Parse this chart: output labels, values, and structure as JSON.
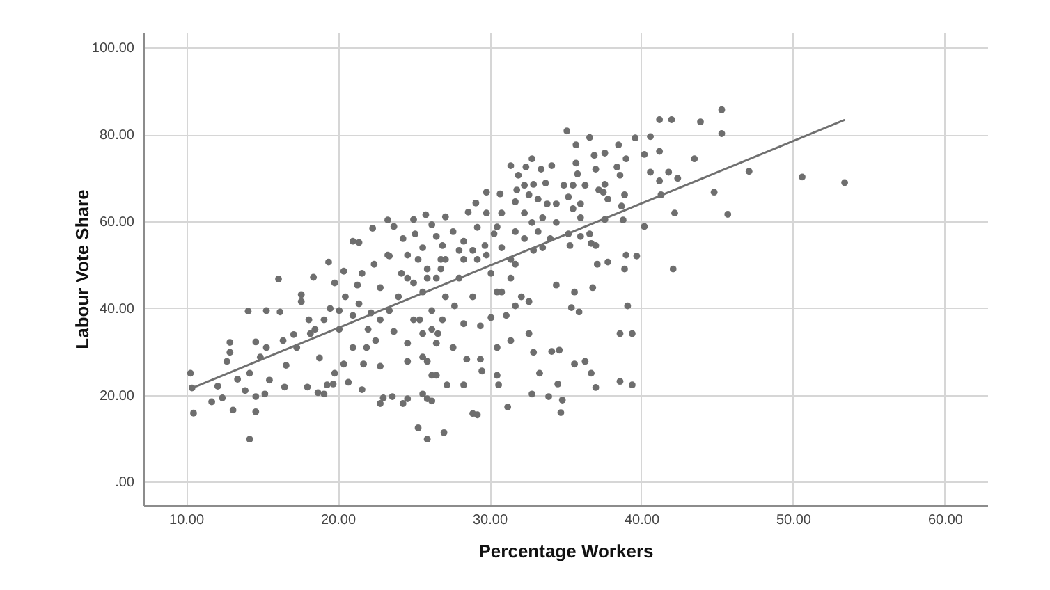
{
  "chart_data": {
    "type": "scatter",
    "xlabel": "Percentage Workers",
    "ylabel": "Labour Vote Share",
    "xlim": [
      7.2,
      62.8
    ],
    "ylim": [
      -5.4,
      103.6
    ],
    "xticks": [
      {
        "value": 10,
        "label": "10.00"
      },
      {
        "value": 20,
        "label": "20.00"
      },
      {
        "value": 30,
        "label": "30.00"
      },
      {
        "value": 40,
        "label": "40.00"
      },
      {
        "value": 50,
        "label": "50.00"
      },
      {
        "value": 60,
        "label": "60.00"
      }
    ],
    "yticks": [
      {
        "value": 0,
        "label": ".00"
      },
      {
        "value": 20,
        "label": "20.00"
      },
      {
        "value": 40,
        "label": "40.00"
      },
      {
        "value": 60,
        "label": "60.00"
      },
      {
        "value": 80,
        "label": "80.00"
      },
      {
        "value": 100,
        "label": "100.00"
      }
    ],
    "grid": true,
    "series": [
      {
        "color": "#6e6e6e",
        "marker": "circle",
        "x": [
          10.3,
          10.5,
          10.4,
          11.7,
          12.1,
          12.4,
          12.9,
          12.9,
          12.7,
          13.1,
          13.4,
          13.9,
          14.1,
          14.2,
          14.2,
          14.6,
          14.6,
          14.6,
          14.9,
          15.3,
          15.2,
          15.3,
          15.5,
          16.1,
          16.2,
          16.5,
          16.6,
          16.4,
          17.1,
          17.3,
          17.6,
          18.0,
          18.4,
          18.1,
          18.5,
          18.8,
          18.7,
          19.1,
          19.3,
          19.4,
          19.8,
          19.7,
          19.5,
          20.4,
          20.1,
          20.4,
          20.7,
          21.0,
          21.3,
          21.4,
          21.6,
          21.7,
          22.2,
          22.5,
          22.8,
          23.0,
          22.4,
          22.8,
          23.6,
          23.3,
          24.0,
          24.3,
          24.6,
          24.6,
          25.3,
          25.9,
          25.6,
          25.9,
          25.0,
          26.2,
          24.6,
          25.9,
          27.0,
          28.9,
          29.2,
          31.2,
          32.8,
          33.9,
          34.7,
          34.8,
          34.5,
          33.3,
          32.9,
          34.1,
          34.6,
          35.6,
          36.3,
          36.7,
          37.0,
          38.6,
          39.4,
          38.6,
          39.4,
          39.1,
          35.4,
          35.9,
          36.8,
          35.6,
          34.4,
          37.1,
          37.8,
          38.9,
          39.7,
          42.1,
          32.6,
          31.4,
          30.5,
          30.5,
          30.6,
          29.4,
          29.5,
          28.3,
          27.2,
          26.2,
          26.5,
          27.6,
          28.3,
          29.4,
          30.1,
          31.1,
          31.7,
          32.6,
          25.6,
          26.6,
          25.9,
          27.7,
          30.5,
          28.5,
          35.1,
          41.2,
          42.0,
          43.9,
          45.3,
          45.3,
          36.6,
          35.7,
          38.5,
          39.6,
          40.6,
          40.2,
          41.2,
          43.5,
          36.9,
          37.6,
          37.0,
          35.7,
          39.0,
          38.4,
          38.6,
          40.6,
          41.2,
          41.8,
          42.4,
          41.3,
          44.8,
          42.2,
          40.2,
          38.9,
          38.7,
          37.6,
          37.5,
          37.8,
          37.6,
          38.8,
          39.0,
          31.4,
          31.9,
          32.8,
          32.4,
          33.4,
          34.1,
          32.9,
          32.3,
          33.7,
          35.8,
          36.3,
          34.9,
          35.5,
          35.2,
          34.4,
          35.5,
          36.0,
          37.2,
          33.2,
          32.6,
          31.8,
          31.7,
          30.7,
          29.8,
          29.1,
          28.6,
          30.8,
          29.8,
          27.1,
          25.8,
          26.2,
          27.6,
          28.3,
          28.0,
          29.2,
          30.3,
          31.7,
          32.8,
          33.5,
          34.0,
          33.5,
          35.2,
          36.0,
          36.6,
          36.7,
          37.0,
          35.3,
          32.9,
          32.3,
          30.8,
          29.7,
          26.9,
          25.6,
          21.0,
          21.4,
          22.3,
          23.3,
          23.7,
          25.0,
          25.1,
          24.3,
          23.4,
          24.6,
          47.1,
          45.7,
          50.6,
          53.4,
          24.2,
          25.0,
          25.6,
          26.5,
          26.8,
          25.3,
          23.4,
          22.8,
          22.0,
          23.7,
          24.6,
          25.6,
          26.5,
          26.2,
          20.5,
          19.8,
          21.0,
          19.1,
          18.2,
          17.6,
          21.6,
          22.8,
          20.1,
          21.9,
          26.8,
          28.0,
          29.2,
          30.1,
          30.8,
          28.9,
          27.1,
          25.9,
          26.2,
          31.7,
          32.1,
          31.4,
          25.4,
          26.9,
          26.5,
          28.3,
          29.8,
          31.4,
          28.9,
          30.5,
          32.3,
          33.8,
          34.4,
          36.0,
          33.2,
          27.1
        ],
        "values": [
          25.0,
          15.8,
          21.6,
          18.4,
          22.0,
          19.3,
          32.1,
          29.8,
          27.7,
          16.5,
          23.6,
          21.0,
          39.3,
          9.8,
          25.0,
          16.1,
          32.2,
          19.6,
          28.7,
          39.4,
          20.2,
          30.9,
          23.4,
          46.7,
          39.1,
          21.8,
          26.8,
          32.5,
          33.9,
          30.9,
          41.5,
          21.8,
          47.1,
          37.3,
          35.1,
          28.5,
          20.5,
          20.2,
          22.3,
          50.6,
          25.0,
          22.5,
          39.9,
          48.5,
          35.1,
          27.1,
          22.9,
          30.9,
          45.3,
          41.0,
          21.2,
          27.1,
          38.9,
          32.5,
          18.0,
          19.3,
          50.1,
          26.6,
          19.6,
          52.2,
          42.6,
          18.0,
          19.1,
          27.7,
          12.4,
          9.8,
          20.2,
          19.1,
          37.3,
          24.5,
          46.9,
          49.0,
          11.3,
          15.7,
          15.4,
          17.2,
          20.2,
          19.6,
          15.9,
          18.8,
          22.5,
          25.0,
          29.8,
          30.0,
          30.3,
          27.1,
          27.7,
          25.0,
          21.7,
          23.1,
          22.3,
          34.1,
          34.1,
          40.5,
          40.1,
          39.1,
          44.7,
          43.7,
          45.3,
          50.1,
          50.6,
          49.0,
          52.0,
          49.0,
          34.1,
          32.5,
          30.9,
          24.5,
          22.3,
          28.2,
          25.5,
          22.3,
          22.3,
          18.6,
          24.5,
          30.9,
          36.4,
          35.9,
          37.8,
          38.3,
          40.5,
          41.5,
          34.1,
          34.1,
          27.7,
          40.5,
          43.7,
          28.2,
          80.8,
          83.4,
          83.4,
          82.9,
          85.7,
          80.2,
          79.3,
          77.6,
          77.6,
          79.2,
          79.5,
          75.4,
          76.1,
          74.4,
          75.2,
          75.7,
          72.0,
          73.4,
          74.4,
          72.5,
          70.6,
          71.3,
          69.3,
          71.3,
          69.9,
          66.1,
          66.7,
          61.9,
          58.8,
          66.1,
          63.5,
          68.5,
          66.7,
          65.1,
          60.4,
          60.3,
          52.2,
          72.8,
          70.6,
          74.4,
          72.5,
          72.0,
          72.8,
          68.5,
          68.3,
          68.8,
          70.9,
          68.3,
          68.3,
          68.3,
          65.6,
          64.0,
          62.9,
          60.8,
          67.2,
          65.1,
          66.1,
          67.2,
          64.5,
          66.3,
          66.7,
          64.2,
          62.1,
          61.9,
          61.9,
          61.0,
          61.5,
          59.2,
          57.6,
          55.4,
          53.3,
          58.6,
          57.1,
          57.6,
          59.7,
          60.8,
          56.0,
          53.9,
          57.1,
          56.5,
          57.1,
          54.9,
          54.4,
          54.4,
          53.3,
          56.0,
          53.9,
          54.4,
          54.4,
          53.9,
          55.4,
          55.1,
          58.4,
          60.3,
          58.8,
          60.4,
          57.1,
          56.0,
          52.0,
          52.2,
          71.5,
          61.6,
          70.2,
          68.9,
          48.0,
          45.8,
          43.7,
          46.9,
          51.2,
          51.2,
          39.4,
          37.3,
          35.1,
          34.6,
          31.9,
          28.7,
          31.9,
          35.1,
          42.6,
          45.8,
          38.3,
          37.3,
          34.1,
          43.1,
          48.0,
          44.7,
          39.4,
          30.9,
          49.0,
          46.9,
          51.2,
          48.0,
          43.7,
          42.6,
          42.6,
          46.9,
          39.4,
          50.1,
          42.6,
          46.9,
          37.3,
          37.3,
          56.5,
          51.2,
          52.2,
          51.2,
          53.3,
          58.7,
          61.9,
          64.0,
          59.7,
          64.0,
          57.6,
          51.2
        ]
      },
      {
        "type": "line",
        "color": "#707070",
        "x": [
          10.42,
          53.36
        ],
        "values": [
          21.6,
          83.3
        ]
      }
    ]
  }
}
